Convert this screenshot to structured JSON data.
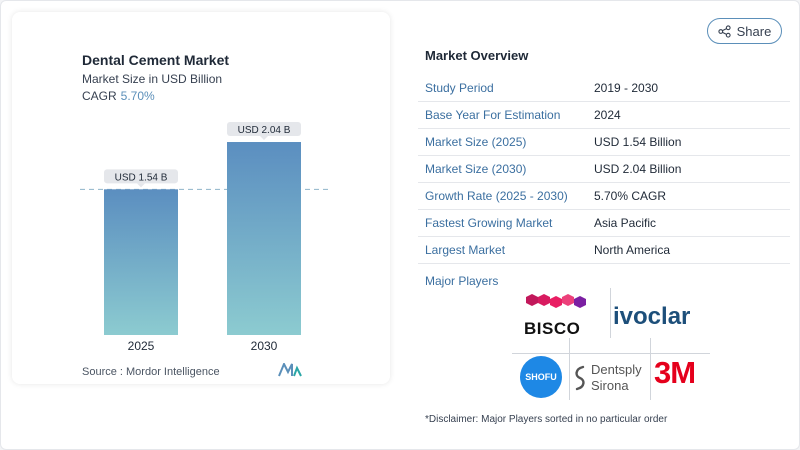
{
  "chart": {
    "title": "Dental Cement Market",
    "subtitle": "Market Size in USD Billion",
    "cagr_label": "CAGR",
    "cagr_value": "5.70%",
    "source": "Source :  Mordor Intelligence"
  },
  "chart_data": {
    "type": "bar",
    "categories": [
      "2025",
      "2030"
    ],
    "values": [
      1.54,
      2.04
    ],
    "data_labels": [
      "USD 1.54 B",
      "USD 2.04 B"
    ],
    "title": "Dental Cement Market",
    "ylabel": "Market Size in USD Billion",
    "reference_line": 1.54,
    "colors": {
      "top": "#5b8ec0",
      "bottom": "#8ccbd0",
      "label_bg": "#e5e7eb",
      "dash": "#8fb4c9"
    }
  },
  "share": {
    "label": "Share",
    "icon": "share-icon"
  },
  "overview": {
    "title": "Market Overview",
    "rows": [
      {
        "key": "Study Period",
        "value": "2019 - 2030"
      },
      {
        "key": "Base Year For Estimation",
        "value": "2024"
      },
      {
        "key": "Market Size (2025)",
        "value": "USD 1.54 Billion"
      },
      {
        "key": "Market Size (2030)",
        "value": "USD 2.04 Billion"
      },
      {
        "key": "Growth Rate (2025 - 2030)",
        "value": "5.70% CAGR"
      },
      {
        "key": "Fastest Growing Market",
        "value": "Asia Pacific"
      },
      {
        "key": "Largest Market",
        "value": "North America"
      }
    ]
  },
  "players": {
    "title": "Major Players",
    "logos": [
      "BISCO",
      "ivoclar",
      "SHOFU",
      "Dentsply",
      "Sirona",
      "3M"
    ],
    "disclaimer": "*Disclaimer: Major Players sorted in no particular order"
  },
  "accent": "#5b8fb9"
}
